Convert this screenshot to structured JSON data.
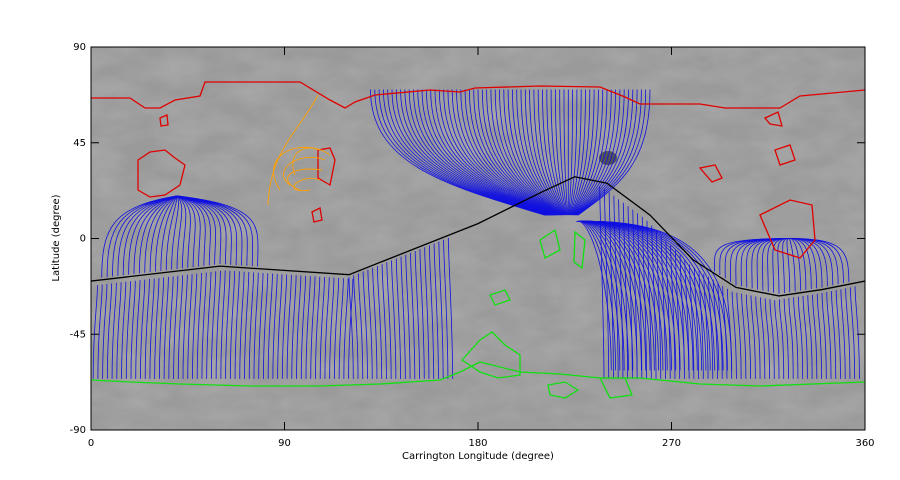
{
  "chart_data": {
    "type": "line",
    "xlabel": "Carrington Longitude (degree)",
    "ylabel": "Latitude (degree)",
    "x": [
      0,
      60,
      120,
      150,
      180,
      210,
      225,
      240,
      260,
      280,
      300,
      320,
      340,
      360
    ],
    "values": [
      -20,
      -13,
      -17,
      -5,
      7,
      22,
      29,
      26,
      11,
      -10,
      -23,
      -27,
      -24,
      -20
    ],
    "color": "#000000",
    "xlim": [
      0,
      360
    ],
    "xticks": [
      0,
      90,
      180,
      270,
      360
    ],
    "ylim": [
      -90,
      90
    ],
    "yticks": [
      -90,
      -45,
      0,
      45,
      90
    ]
  }
}
